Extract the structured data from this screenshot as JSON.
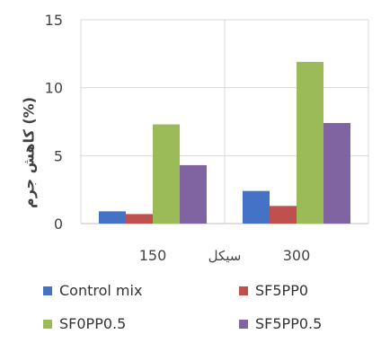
{
  "chart_data": {
    "type": "bar",
    "categories": [
      "150",
      "300"
    ],
    "x_title": "سیکل",
    "ylabel": "کاهش جرم (%)",
    "ylim": [
      0,
      15
    ],
    "yticks": [
      0,
      5,
      10,
      15
    ],
    "grid": "horizontal",
    "legend_position": "bottom",
    "series": [
      {
        "name": "Control mix",
        "color": "#4472C4",
        "values": [
          0.9,
          2.4
        ]
      },
      {
        "name": "SF5PP0",
        "color": "#C0504D",
        "values": [
          0.7,
          1.3
        ]
      },
      {
        "name": "SF0PP0.5",
        "color": "#9BBB59",
        "values": [
          7.3,
          11.9
        ]
      },
      {
        "name": "SF5PP0.5",
        "color": "#8064A2",
        "values": [
          4.3,
          7.4
        ]
      }
    ]
  }
}
